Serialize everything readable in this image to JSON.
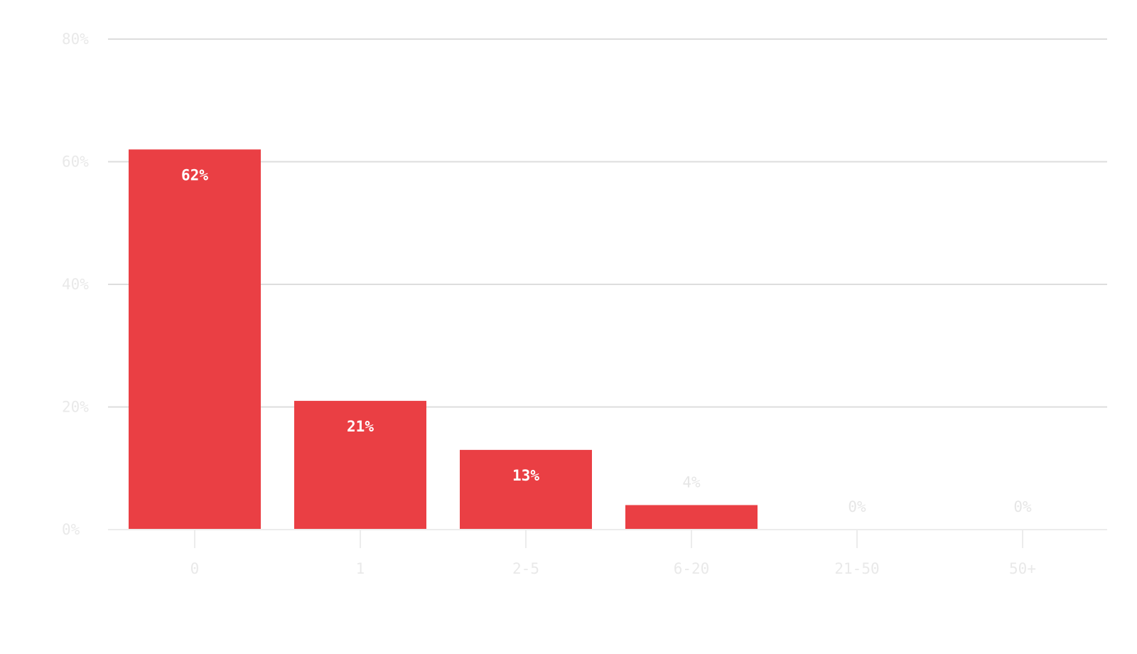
{
  "chart_data": {
    "type": "bar",
    "categories": [
      "0",
      "1",
      "2-5",
      "6-20",
      "21-50",
      "50+"
    ],
    "values": [
      62,
      21,
      13,
      4,
      0,
      0
    ],
    "data_labels": [
      "62%",
      "21%",
      "13%",
      "4%",
      "0%",
      "0%"
    ],
    "y_ticks": [
      0,
      20,
      40,
      60,
      80
    ],
    "y_tick_labels": [
      "0%",
      "20%",
      "40%",
      "60%",
      "80%"
    ],
    "ylim": [
      0,
      80
    ],
    "grid": true,
    "legend": "none",
    "colors": {
      "bar": "#ea3f44"
    }
  }
}
